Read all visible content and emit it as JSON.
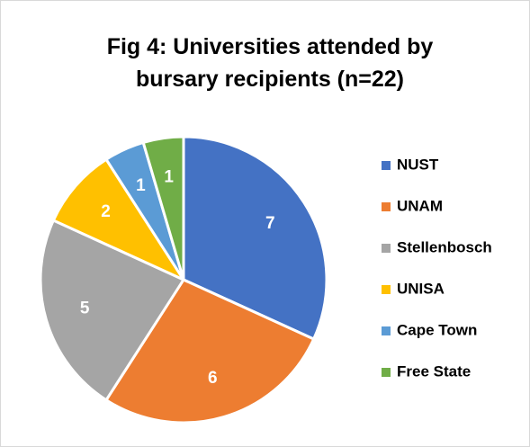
{
  "chart_data": {
    "type": "pie",
    "title": "Fig 4: Universities attended by bursary recipients (n=22)",
    "categories": [
      "NUST",
      "UNAM",
      "Stellenbosch",
      "UNISA",
      "Cape Town",
      "Free State"
    ],
    "values": [
      7,
      6,
      5,
      2,
      1,
      1
    ],
    "colors": [
      "#4472c4",
      "#ed7d31",
      "#a5a5a5",
      "#ffc000",
      "#5b9bd5",
      "#70ad47"
    ],
    "legend": "right"
  }
}
